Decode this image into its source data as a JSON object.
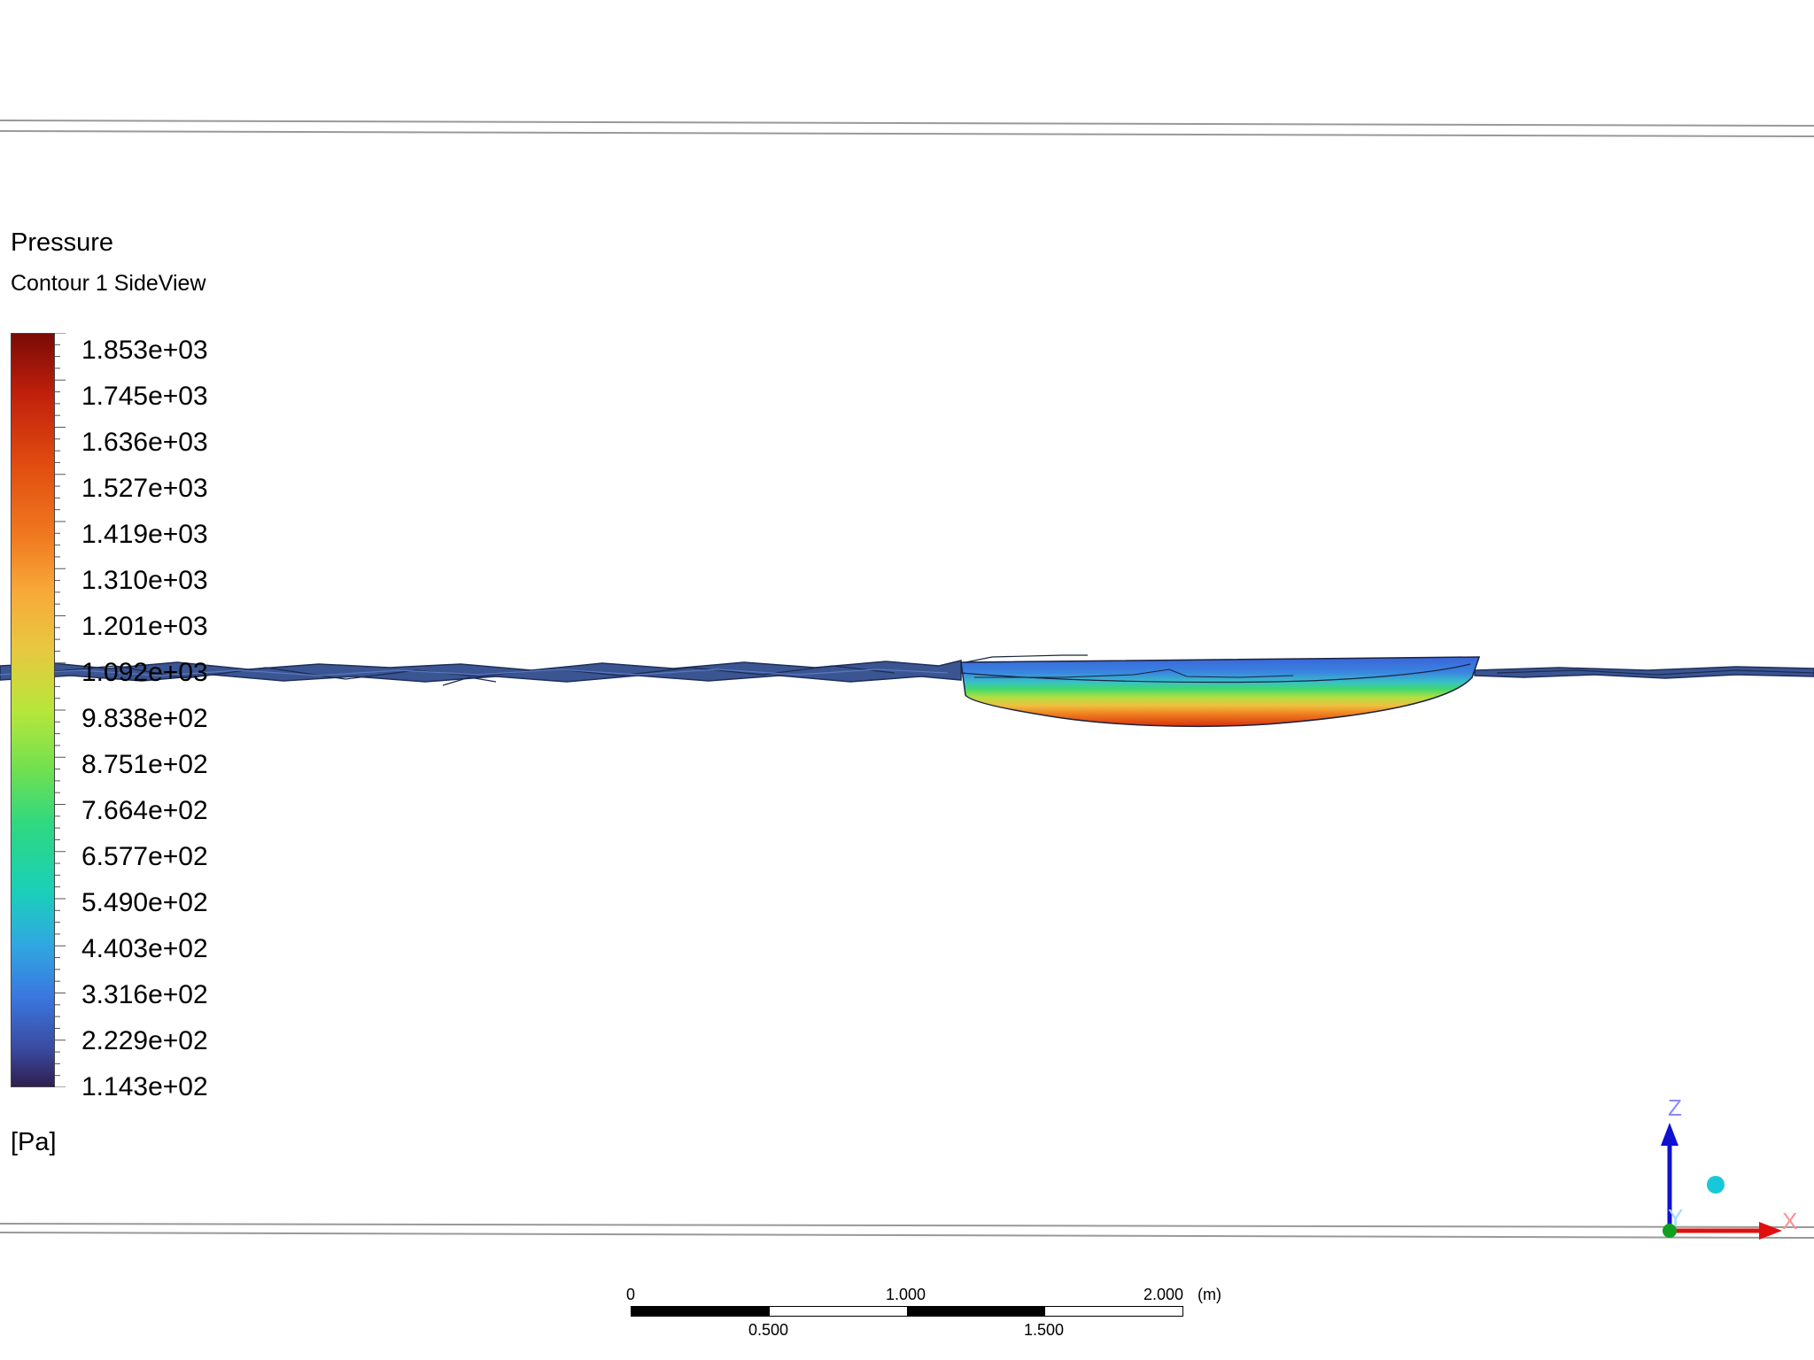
{
  "legend": {
    "title": "Pressure",
    "subtitle": "Contour 1 SideView",
    "values": [
      "1.853e+03",
      "1.745e+03",
      "1.636e+03",
      "1.527e+03",
      "1.419e+03",
      "1.310e+03",
      "1.201e+03",
      "1.092e+03",
      "9.838e+02",
      "8.751e+02",
      "7.664e+02",
      "6.577e+02",
      "5.490e+02",
      "4.403e+02",
      "3.316e+02",
      "2.229e+02",
      "1.143e+02"
    ],
    "unit": "[Pa]",
    "colors": [
      "#7a0a05",
      "#c0200c",
      "#e04a10",
      "#f07a20",
      "#f8a838",
      "#e8c840",
      "#b8e63a",
      "#70e050",
      "#30d880",
      "#1ad0b8",
      "#30a8e0",
      "#3a78e0",
      "#3a4aa0",
      "#301e50"
    ]
  },
  "scale_bar": {
    "top_labels": [
      "0",
      "1.000",
      "2.000"
    ],
    "bottom_labels": [
      "0.500",
      "1.500"
    ],
    "unit": "(m)"
  },
  "axes_triad": {
    "z": "Z",
    "y": "Y",
    "x": "X"
  },
  "colors": {
    "water_surface": "#3a5a9c",
    "domain_lines": "#888888",
    "background": "#ffffff"
  }
}
